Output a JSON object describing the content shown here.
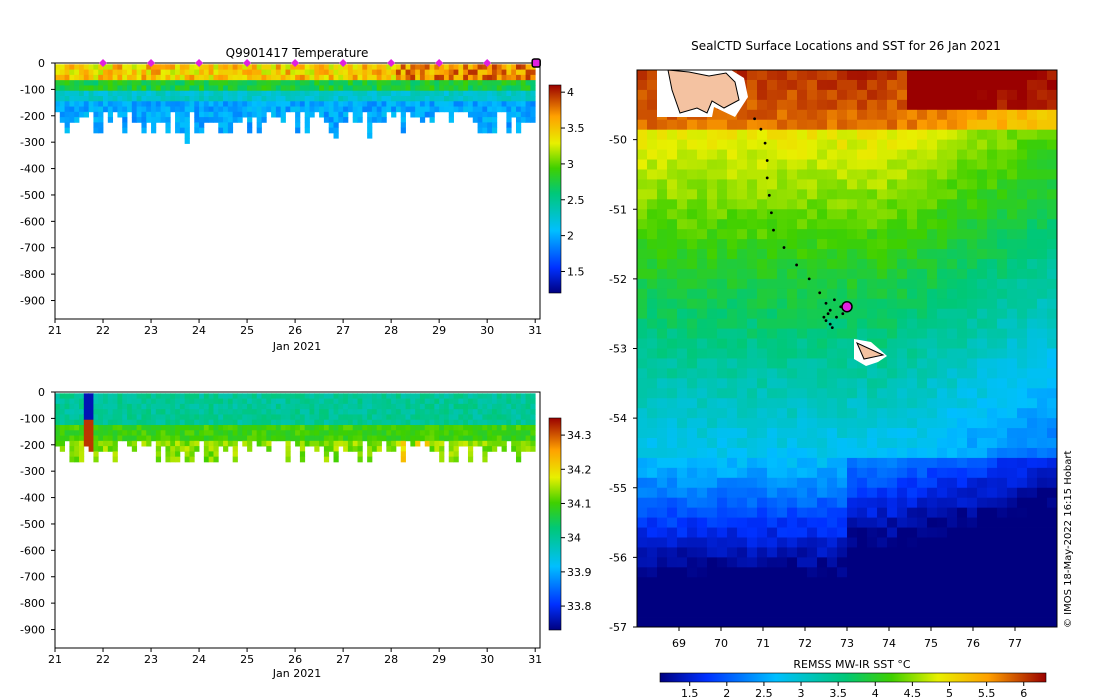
{
  "chart_data": [
    {
      "type": "heatmap",
      "id": "temperature-section",
      "title": "Q9901417  Temperature",
      "xlabel": "Jan 2021",
      "ylabel": "",
      "xlim": [
        21,
        31.1
      ],
      "ylim": [
        -970,
        0
      ],
      "xticks": [
        "21",
        "22",
        "23",
        "24",
        "25",
        "26",
        "27",
        "28",
        "29",
        "30",
        "31"
      ],
      "yticks": [
        "0",
        "-100",
        "-200",
        "-300",
        "-400",
        "-500",
        "-600",
        "-700",
        "-800",
        "-900"
      ],
      "profile_markers_day": [
        22,
        23,
        24,
        25,
        26,
        27,
        28,
        29,
        30
      ],
      "latest_marker_day": 31,
      "colorbar": {
        "min": 1.2,
        "max": 4.1,
        "ticks": [
          "1.5",
          "2",
          "2.5",
          "3",
          "3.5",
          "4"
        ]
      }
    },
    {
      "type": "heatmap",
      "id": "salinity-section",
      "title": "",
      "xlabel": "Jan 2021",
      "ylabel": "",
      "xlim": [
        21,
        31.1
      ],
      "ylim": [
        -970,
        0
      ],
      "xticks": [
        "21",
        "22",
        "23",
        "24",
        "25",
        "26",
        "27",
        "28",
        "29",
        "30",
        "31"
      ],
      "yticks": [
        "0",
        "-100",
        "-200",
        "-300",
        "-400",
        "-500",
        "-600",
        "-700",
        "-800",
        "-900"
      ],
      "colorbar": {
        "min": 33.73,
        "max": 34.35,
        "ticks": [
          "33.8",
          "33.9",
          "34",
          "34.1",
          "34.2",
          "34.3"
        ]
      }
    },
    {
      "type": "heatmap",
      "id": "sst-map",
      "title": "SealCTD Surface Locations and SST for 26 Jan 2021",
      "xlabel": "",
      "ylabel": "",
      "xlim": [
        68,
        78
      ],
      "ylim": [
        -57,
        -49
      ]
    }
  ],
  "map": {
    "lon_ticks": [
      "69",
      "70",
      "71",
      "72",
      "73",
      "74",
      "75",
      "76",
      "77"
    ],
    "lat_ticks": [
      "-50",
      "-51",
      "-52",
      "-53",
      "-54",
      "-55",
      "-56",
      "-57"
    ],
    "colorbar_label": "REMSS MW-IR SST °C",
    "colorbar": {
      "min": 1.1,
      "max": 6.3,
      "ticks": [
        "1.5",
        "2",
        "2.5",
        "3",
        "3.5",
        "4",
        "4.5",
        "5",
        "5.5",
        "6"
      ]
    },
    "current_position": {
      "lon": 73.0,
      "lat": -52.4
    },
    "track": [
      {
        "lon": 70.8,
        "lat": -49.7
      },
      {
        "lon": 70.95,
        "lat": -49.85
      },
      {
        "lon": 71.05,
        "lat": -50.05
      },
      {
        "lon": 71.1,
        "lat": -50.3
      },
      {
        "lon": 71.1,
        "lat": -50.55
      },
      {
        "lon": 71.15,
        "lat": -50.8
      },
      {
        "lon": 71.2,
        "lat": -51.05
      },
      {
        "lon": 71.25,
        "lat": -51.3
      },
      {
        "lon": 71.5,
        "lat": -51.55
      },
      {
        "lon": 71.8,
        "lat": -51.8
      },
      {
        "lon": 72.1,
        "lat": -52.0
      },
      {
        "lon": 72.35,
        "lat": -52.2
      },
      {
        "lon": 72.5,
        "lat": -52.35
      },
      {
        "lon": 72.55,
        "lat": -52.5
      },
      {
        "lon": 72.5,
        "lat": -52.6
      },
      {
        "lon": 72.65,
        "lat": -52.7
      },
      {
        "lon": 72.75,
        "lat": -52.55
      },
      {
        "lon": 72.85,
        "lat": -52.4
      },
      {
        "lon": 72.7,
        "lat": -52.3
      },
      {
        "lon": 72.6,
        "lat": -52.45
      },
      {
        "lon": 72.45,
        "lat": -52.55
      },
      {
        "lon": 72.6,
        "lat": -52.65
      },
      {
        "lon": 72.9,
        "lat": -52.5
      },
      {
        "lon": 73.0,
        "lat": -52.4
      }
    ]
  },
  "credit": "© IMOS 18-May-2022 16:15 Hobart",
  "colors": {
    "magenta": "#e020e0",
    "land": "#f4c2a1"
  }
}
